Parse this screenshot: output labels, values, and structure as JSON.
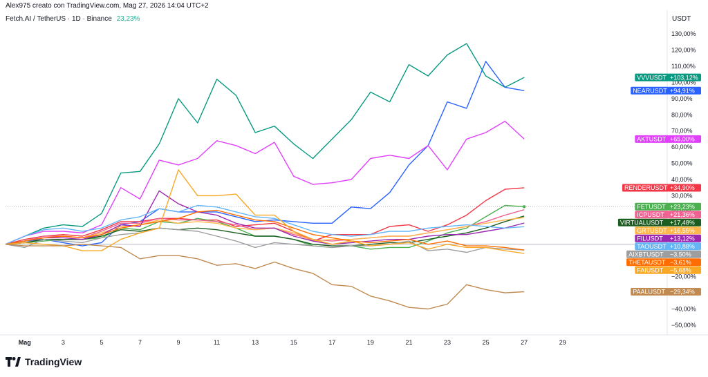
{
  "header": {
    "author_line": "Alex975 creato con TradingView.com, Mag 27, 2026 14:04 UTC+2",
    "symbol": "Fetch.AI / TetherUS · 1D · Binance",
    "symbol_change": "23,23%"
  },
  "brand": {
    "name": "TradingView",
    "icon": "tradingview-logo-icon"
  },
  "chart_data": {
    "type": "line",
    "ylabel": "USDT",
    "yaxis_unit": "%",
    "ylim": [
      -56,
      136
    ],
    "yticks": [
      -50,
      -40,
      -20,
      20,
      30,
      40,
      50,
      60,
      70,
      80,
      90,
      100,
      110,
      120,
      130
    ],
    "ytick_labels": [
      "−50,00%",
      "−40,00%",
      "−20,00%",
      "20,00%",
      "30,00%",
      "40,00%",
      "50,00%",
      "60,00%",
      "70,00%",
      "80,00%",
      "90,00%",
      "100,00%",
      "110,00%",
      "120,00%",
      "130,00%"
    ],
    "xlim": [
      0,
      31
    ],
    "x": [
      0,
      1,
      2,
      3,
      4,
      5,
      6,
      7,
      8,
      9,
      10,
      11,
      12,
      13,
      14,
      15,
      16,
      17,
      18,
      19,
      20,
      21,
      22,
      23,
      24,
      25,
      26,
      27
    ],
    "xticks": [
      1,
      3,
      5,
      7,
      9,
      11,
      13,
      15,
      17,
      19,
      21,
      23,
      25,
      27,
      29
    ],
    "xtick_labels": [
      "Mag",
      "3",
      "5",
      "7",
      "9",
      "11",
      "13",
      "15",
      "17",
      "19",
      "21",
      "23",
      "25",
      "27",
      "29"
    ],
    "grid": false,
    "reference_lines": [
      {
        "value": 0,
        "style": "solid",
        "color": "#b2b5be"
      },
      {
        "value": 23.23,
        "style": "dotted",
        "color": "#b2b5be"
      }
    ],
    "series": [
      {
        "name": "VVVUSDT",
        "label": "+103,12%",
        "color": "#089981",
        "values": [
          0,
          5,
          10,
          12,
          11,
          19,
          44,
          45,
          62,
          90,
          75,
          102,
          92,
          69,
          73,
          62,
          53,
          65,
          77,
          94,
          88,
          111,
          104,
          117,
          124,
          104,
          97,
          103.12
        ]
      },
      {
        "name": "NEARUSDT",
        "label": "+94,91%",
        "color": "#2962ff",
        "values": [
          0,
          2,
          3,
          1,
          -1,
          1,
          12,
          14,
          22,
          20,
          20,
          20,
          17,
          14,
          15,
          14,
          13,
          13,
          23,
          22,
          32,
          49,
          61,
          88,
          84,
          113,
          97,
          94.91
        ]
      },
      {
        "name": "AKTUSDT",
        "label": "+65,00%",
        "color": "#e040fb",
        "values": [
          0,
          5,
          8,
          8,
          7,
          12,
          35,
          28,
          52,
          49,
          53,
          64,
          61,
          56,
          63,
          42,
          37,
          38,
          40,
          53,
          55,
          53,
          61,
          46,
          65,
          69,
          76,
          65
        ]
      },
      {
        "name": "RENDERUSDT",
        "label": "+34,90%",
        "color": "#f23645",
        "values": [
          0,
          3,
          5,
          6,
          5,
          9,
          14,
          14,
          16,
          16,
          15,
          15,
          11,
          12,
          13,
          8,
          2,
          6,
          6,
          6,
          11,
          12,
          8,
          12,
          18,
          27,
          34,
          34.9
        ]
      },
      {
        "name": "FETUSDT",
        "label": "+23,23%",
        "color": "#4caf50",
        "values": [
          0,
          1,
          2,
          3,
          3,
          4,
          10,
          9,
          14,
          13,
          16,
          14,
          10,
          5,
          5,
          3,
          -1,
          -2,
          -1,
          -3,
          -2,
          -2,
          2,
          7,
          10,
          17,
          24,
          23.23
        ]
      },
      {
        "name": "ICPUSDT",
        "label": "+21,36%",
        "color": "#f06292",
        "values": [
          0,
          2,
          5,
          5,
          4,
          8,
          13,
          13,
          16,
          15,
          15,
          14,
          12,
          9,
          10,
          6,
          3,
          2,
          3,
          4,
          5,
          5,
          7,
          9,
          11,
          14,
          18,
          21.36
        ]
      },
      {
        "name": "VIRTUALUSDT",
        "label": "+17,48%",
        "color": "#1b5e20",
        "values": [
          0,
          1,
          3,
          3,
          3,
          5,
          9,
          8,
          10,
          9,
          10,
          9,
          7,
          5,
          5,
          3,
          0,
          -1,
          -1,
          0,
          1,
          1,
          3,
          5,
          7,
          10,
          14,
          17.48
        ]
      },
      {
        "name": "GRTUSDT",
        "label": "+16,55%",
        "color": "#ffb74d",
        "values": [
          0,
          2,
          4,
          5,
          4,
          7,
          11,
          12,
          15,
          13,
          14,
          13,
          10,
          9,
          10,
          7,
          2,
          3,
          3,
          4,
          5,
          5,
          7,
          9,
          11,
          13,
          15,
          16.55
        ]
      },
      {
        "name": "FILUSDT",
        "label": "+13,12%",
        "color": "#9c27b0",
        "values": [
          0,
          2,
          4,
          4,
          3,
          6,
          12,
          11,
          33,
          25,
          20,
          18,
          13,
          10,
          10,
          5,
          2,
          0,
          1,
          2,
          3,
          3,
          5,
          6,
          6,
          8,
          10,
          13.12
        ]
      },
      {
        "name": "TAOUSDT",
        "label": "+10,88%",
        "color": "#64b5f6",
        "values": [
          0,
          5,
          9,
          10,
          8,
          10,
          15,
          17,
          22,
          20,
          24,
          23,
          20,
          17,
          16,
          12,
          8,
          6,
          5,
          6,
          8,
          8,
          10,
          11,
          12,
          11,
          10,
          10.88
        ]
      },
      {
        "name": "AIXBTUSDT",
        "label": "−3,50%",
        "color": "#9e9e9e",
        "values": [
          0,
          -2,
          3,
          2,
          1,
          4,
          6,
          7,
          10,
          9,
          8,
          5,
          2,
          -2,
          1,
          0,
          -1,
          -2,
          -1,
          -1,
          0,
          2,
          -4,
          -3,
          -5,
          -2,
          -3,
          -3.5
        ]
      },
      {
        "name": "THETAUSDT",
        "label": "−3,61%",
        "color": "#ff6d00",
        "values": [
          0,
          2,
          4,
          5,
          4,
          6,
          10,
          12,
          14,
          16,
          20,
          21,
          18,
          15,
          14,
          10,
          6,
          4,
          2,
          1,
          2,
          3,
          0,
          2,
          -1,
          -1,
          -2,
          -3.61
        ]
      },
      {
        "name": "FAIUSDT",
        "label": "−5,68%",
        "color": "#f9a825",
        "values": [
          0,
          1,
          0,
          -1,
          -4,
          -4,
          3,
          7,
          10,
          46,
          30,
          30,
          31,
          18,
          18,
          8,
          3,
          0,
          2,
          -1,
          0,
          1,
          -3,
          0,
          -2,
          -2,
          -4,
          -5.68
        ]
      },
      {
        "name": "PAALUSDT",
        "label": "−29,34%",
        "color": "#c08a50",
        "values": [
          0,
          -1,
          -1,
          -1,
          0,
          -1,
          -2,
          -9,
          -7,
          -7,
          -9,
          -13,
          -12,
          -15,
          -11,
          -15,
          -18,
          -25,
          -26,
          -32,
          -35,
          -39,
          -40,
          -37,
          -25,
          -28,
          -30,
          -29.34
        ]
      }
    ],
    "tags": [
      {
        "series": "VVVUSDT",
        "bg": "#089981",
        "text": "VVVUSDT",
        "value": "+103,12%"
      },
      {
        "series": "NEARUSDT",
        "bg": "#2962ff",
        "text": "NEARUSDT",
        "value": "+94,91%"
      },
      {
        "series": "AKTUSDT",
        "bg": "#e040fb",
        "text": "AKTUSDT",
        "value": "+65,00%"
      },
      {
        "series": "RENDERUSDT",
        "bg": "#f23645",
        "text": "RENDERUSDT",
        "value": "+34,90%"
      },
      {
        "series": "FETUSDT",
        "bg": "#4caf50",
        "text": "FETUSDT",
        "value": "+23,23%"
      },
      {
        "series": "ICPUSDT",
        "bg": "#f06292",
        "text": "ICPUSDT",
        "value": "+21,36%"
      },
      {
        "series": "VIRTUALUSDT",
        "bg": "#1b5e20",
        "text": "VIRTUALUSDT",
        "value": "+17,48%"
      },
      {
        "series": "GRTUSDT",
        "bg": "#ffb74d",
        "text": "GRTUSDT",
        "value": "+16,55%"
      },
      {
        "series": "FILUSDT",
        "bg": "#9c27b0",
        "text": "FILUSDT",
        "value": "+13,12%"
      },
      {
        "series": "TAOUSDT",
        "bg": "#64b5f6",
        "text": "TAOUSDT",
        "value": "+10,88%"
      },
      {
        "series": "AIXBTUSDT",
        "bg": "#9e9e9e",
        "text": "AIXBTUSDT",
        "value": "−3,50%"
      },
      {
        "series": "THETAUSDT",
        "bg": "#ff6d00",
        "text": "THETAUSDT",
        "value": "−3,61%"
      },
      {
        "series": "FAIUSDT",
        "bg": "#f9a825",
        "text": "FAIUSDT",
        "value": "−5,68%"
      },
      {
        "series": "PAALUSDT",
        "bg": "#c08a50",
        "text": "PAALUSDT",
        "value": "−29,34%"
      }
    ]
  }
}
